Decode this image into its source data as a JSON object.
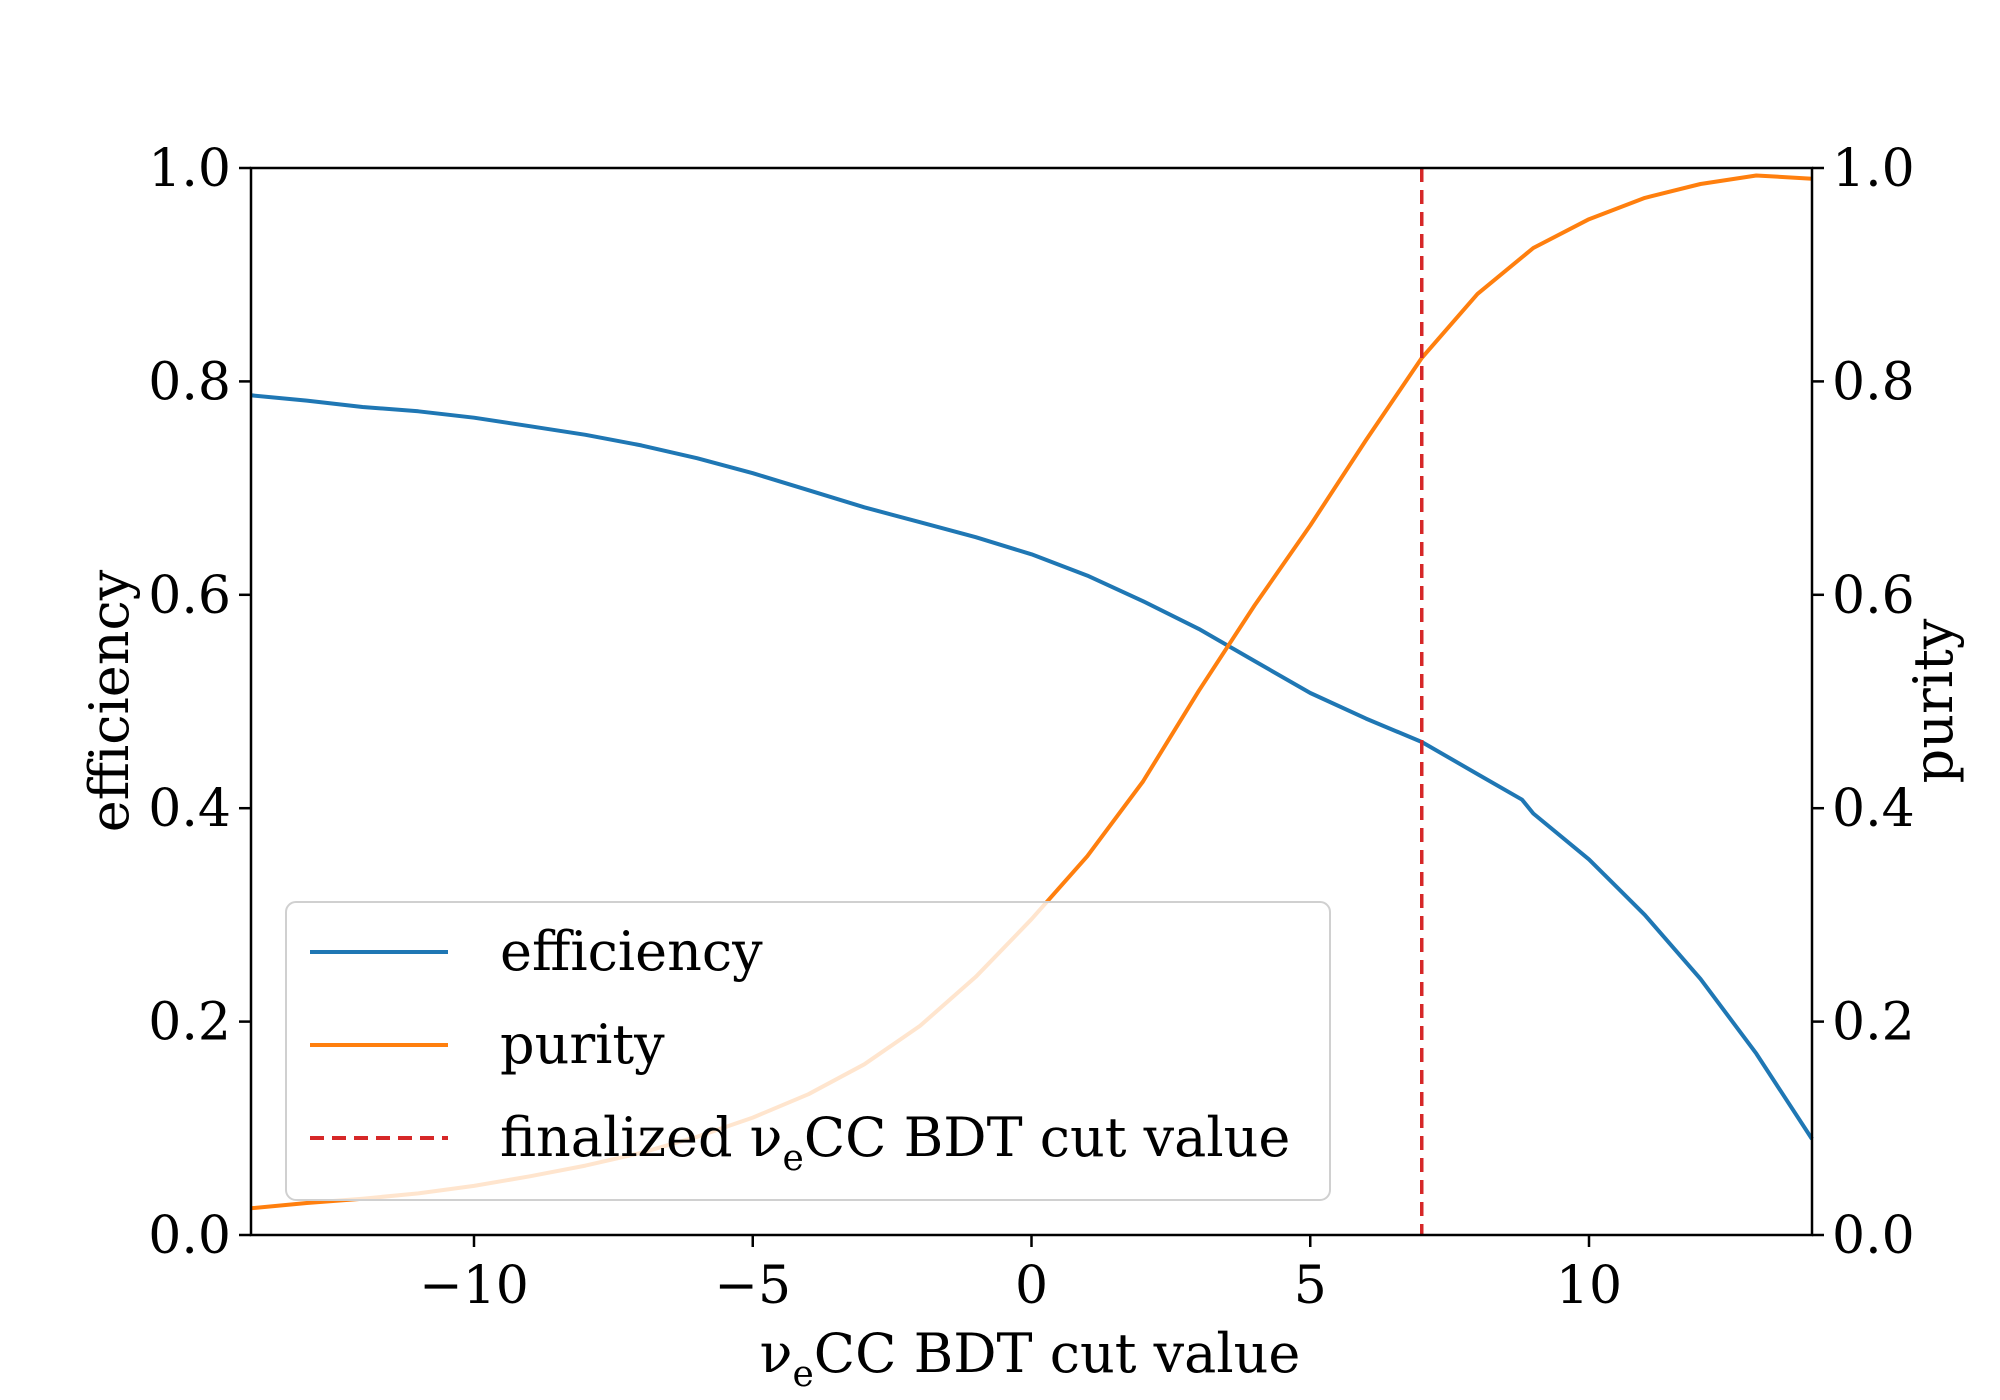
{
  "chart_data": {
    "type": "line",
    "xlabel": "νeCC BDT cut value",
    "ylabel_left": "efficiency",
    "ylabel_right": "purity",
    "xlim": [
      -14,
      14
    ],
    "ylim_left": [
      0,
      1
    ],
    "ylim_right": [
      0,
      1
    ],
    "x_ticks": [
      -10,
      -5,
      0,
      5,
      10
    ],
    "x_tick_labels": [
      "−10",
      "−5",
      "0",
      "5",
      "10"
    ],
    "y_ticks": [
      0,
      0.2,
      0.4,
      0.6,
      0.8,
      1.0
    ],
    "y_tick_labels": [
      "0.0",
      "0.2",
      "0.4",
      "0.6",
      "0.8",
      "1.0"
    ],
    "grid": false,
    "legend_position": "lower-left",
    "series": [
      {
        "name": "efficiency",
        "axis": "left",
        "color": "#1f77b4",
        "style": "solid",
        "x": [
          -14,
          -13,
          -12,
          -11,
          -10,
          -9,
          -8,
          -7,
          -6,
          -5,
          -4,
          -3,
          -2,
          -1,
          0,
          1,
          2,
          3,
          4,
          5,
          6,
          7,
          8,
          8.8,
          9,
          10,
          11,
          12,
          13,
          14
        ],
        "y": [
          0.787,
          0.782,
          0.776,
          0.772,
          0.766,
          0.758,
          0.75,
          0.74,
          0.728,
          0.714,
          0.698,
          0.682,
          0.668,
          0.654,
          0.638,
          0.618,
          0.594,
          0.568,
          0.538,
          0.508,
          0.484,
          0.462,
          0.432,
          0.408,
          0.395,
          0.352,
          0.3,
          0.24,
          0.17,
          0.09
        ]
      },
      {
        "name": "purity",
        "axis": "right",
        "color": "#ff7f0e",
        "style": "solid",
        "x": [
          -14,
          -13,
          -12,
          -11,
          -10,
          -9,
          -8,
          -7,
          -6,
          -5,
          -4,
          -3,
          -2,
          -1,
          0,
          1,
          2,
          3,
          4,
          5,
          6,
          7,
          8,
          9,
          10,
          11,
          12,
          13,
          14
        ],
        "y": [
          0.025,
          0.03,
          0.034,
          0.039,
          0.046,
          0.055,
          0.065,
          0.077,
          0.092,
          0.11,
          0.132,
          0.16,
          0.196,
          0.242,
          0.296,
          0.355,
          0.425,
          0.51,
          0.59,
          0.665,
          0.745,
          0.822,
          0.882,
          0.925,
          0.952,
          0.972,
          0.985,
          0.993,
          0.99
        ]
      },
      {
        "name": "finalized νeCC BDT cut value",
        "axis": "left",
        "color": "#d62728",
        "style": "dashed",
        "vline_x": 7.0
      }
    ]
  }
}
